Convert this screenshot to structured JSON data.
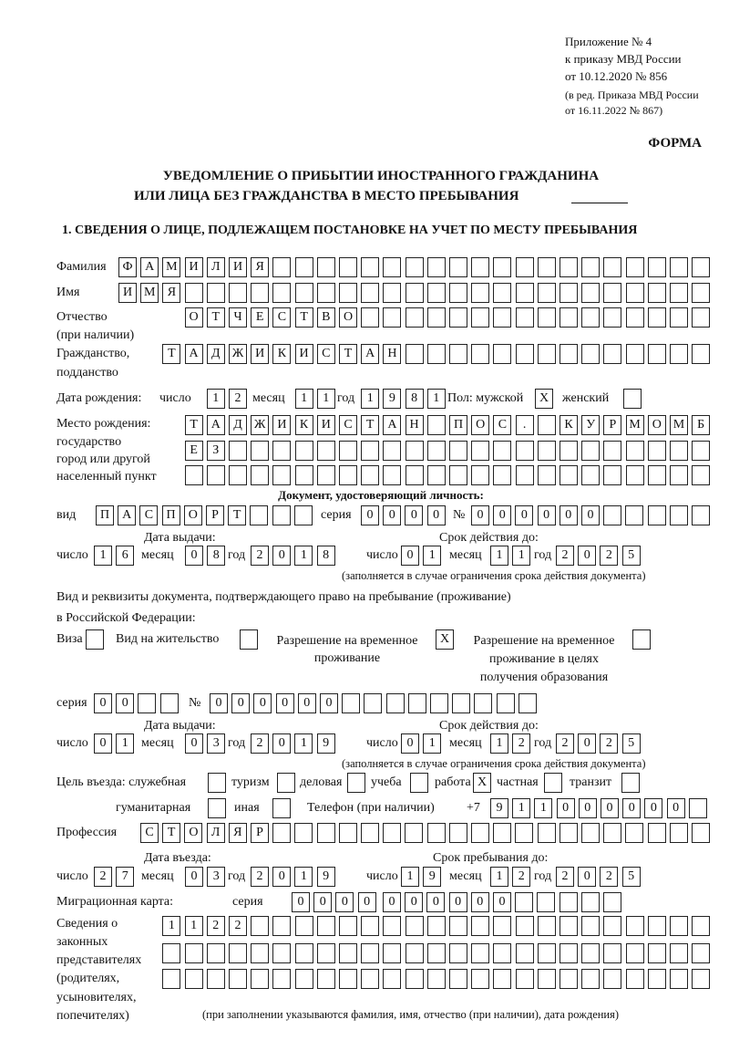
{
  "header": {
    "appendix": "Приложение № 4",
    "order": "к приказу МВД России",
    "order_date": "от 10.12.2020 № 856",
    "edition": "(в ред. Приказа МВД России",
    "edition_date": "от 16.11.2022 № 867)",
    "form_label": "ФОРМА",
    "title_line1": "УВЕДОМЛЕНИЕ О ПРИБЫТИИ ИНОСТРАННОГО ГРАЖДАНИНА",
    "title_line2": "ИЛИ ЛИЦА БЕЗ ГРАЖДАНСТВА В МЕСТО ПРЕБЫВАНИЯ",
    "section1": "1. СВЕДЕНИЯ О ЛИЦЕ, ПОДЛЕЖАЩЕМ ПОСТАНОВКЕ НА УЧЕТ ПО МЕСТУ ПРЕБЫВАНИЯ"
  },
  "labels": {
    "surname": "Фамилия",
    "name": "Имя",
    "patronymic": "Отчество",
    "patronymic_note": "(при наличии)",
    "citizenship": "Гражданство,",
    "citizenship2": "подданство",
    "dob": "Дата рождения:",
    "day": "число",
    "month": "месяц",
    "year": "год",
    "sex_male": "Пол: мужской",
    "sex_female": "женский",
    "birthplace1": "Место рождения:",
    "birthplace2": "государство",
    "birthplace3": "город или другой",
    "birthplace4": "населенный пункт",
    "id_doc": "Документ, удостоверяющий личность:",
    "doc_type": "вид",
    "series": "серия",
    "number": "№",
    "issue_date": "Дата выдачи:",
    "valid_until": "Срок действия до:",
    "valid_note": "(заполняется в случае ограничения срока действия документа)",
    "permit_title1": "Вид и реквизиты документа, подтверждающего право на пребывание (проживание)",
    "permit_title2": "в Российской Федерации:",
    "visa": "Виза",
    "residence": "Вид на жительство",
    "rvp1": "Разрешение на временное",
    "rvp2": "проживание",
    "rvp_edu1": "Разрешение на временное",
    "rvp_edu2": "проживание в целях",
    "rvp_edu3": "получения образования",
    "purpose": "Цель въезда: служебная",
    "tourism": "туризм",
    "business": "деловая",
    "study": "учеба",
    "work": "работа",
    "private": "частная",
    "transit": "транзит",
    "humanitarian": "гуманитарная",
    "other": "иная",
    "phone": "Телефон (при наличии)",
    "phone_prefix": "+7",
    "profession": "Профессия",
    "entry_date": "Дата въезда:",
    "stay_until": "Срок пребывания до:",
    "migration_card": "Миграционная карта:",
    "reps1": "Сведения о",
    "reps2": "законных",
    "reps3": "представителях",
    "reps4": "(родителях,",
    "reps5": "усыновителях,",
    "reps6": "попечителях)",
    "reps_note": "(при заполнении указываются фамилия, имя, отчество (при наличии), дата рождения)"
  },
  "fields": {
    "surname": "ФАМИЛИЯ",
    "name": "ИМЯ",
    "patronymic": "ОТЧЕСТВО",
    "citizenship": "ТАДЖИКИСТАН",
    "dob_day": "12",
    "dob_month": "11",
    "dob_year": "1981",
    "sex_male": "X",
    "sex_female": "",
    "birthplace_1": "ТАДЖИКИСТАН ПОС. КУРМОМБ",
    "birthplace_2": "ЕЗ",
    "birthplace_3": "",
    "doc_type": "ПАСПОРТ",
    "doc_series": "0000",
    "doc_number": "000000",
    "doc_issue_day": "16",
    "doc_issue_month": "08",
    "doc_issue_year": "2018",
    "doc_valid_day": "01",
    "doc_valid_month": "11",
    "doc_valid_year": "2025",
    "visa": "",
    "residence": "",
    "rvp": "X",
    "rvp_edu": "",
    "permit_series": "00",
    "permit_number": "000000",
    "permit_issue_day": "01",
    "permit_issue_month": "03",
    "permit_issue_year": "2019",
    "permit_valid_day": "01",
    "permit_valid_month": "12",
    "permit_valid_year": "2025",
    "purpose_official": "",
    "purpose_tourism": "",
    "purpose_business": "",
    "purpose_study": "",
    "purpose_work": "X",
    "purpose_private": "",
    "purpose_transit": "",
    "purpose_humanitarian": "",
    "purpose_other": "",
    "phone": "911000000",
    "profession": "СТОЛЯР",
    "entry_day": "27",
    "entry_month": "03",
    "entry_year": "2019",
    "stay_day": "19",
    "stay_month": "12",
    "stay_year": "2025",
    "migration_series": "0000",
    "migration_number": "000000",
    "reps_1": "1122",
    "reps_2": "",
    "reps_3": ""
  }
}
